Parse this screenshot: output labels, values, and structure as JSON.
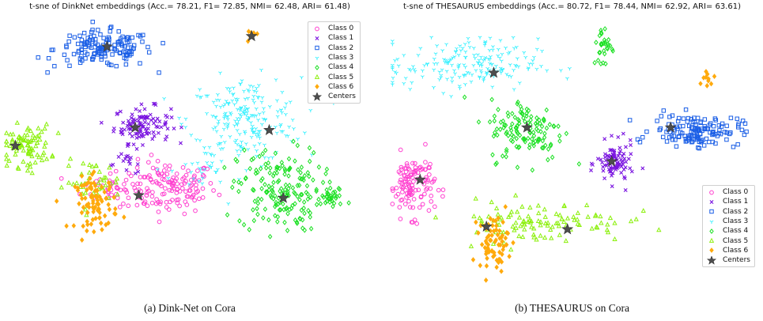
{
  "panels": [
    {
      "title": "t-sne of DinkNet embeddings (Acc.= 78.21, F1= 72.85, NMI= 62.48, ARI= 61.48)",
      "caption": "(a) Dink-Net on Cora"
    },
    {
      "title": "t-sne of THESAURUS embeddings (Acc.= 80.72, F1= 78.44, NMI= 62.92, ARI= 63.61)",
      "caption": "(b) THESAURUS on Cora"
    }
  ],
  "legend_labels": [
    "Class 0",
    "Class 1",
    "Class 2",
    "Class 3",
    "Class 4",
    "Class 5",
    "Class 6",
    "Centers"
  ],
  "colors": {
    "class0": "#ff3ecf",
    "class1": "#7a14e0",
    "class2": "#1a5ee6",
    "class3": "#33f0ff",
    "class4": "#19e021",
    "class5": "#8cf00d",
    "class6": "#ffaa0d",
    "centers": "#4d4d4d"
  },
  "markers": [
    "circle-open",
    "x",
    "square-open",
    "tri-down",
    "diamond-open",
    "triangle-open",
    "diamond-filled",
    "star"
  ],
  "chart_data": [
    {
      "type": "scatter",
      "title": "t-sne of DinkNet embeddings (Acc.= 78.21, F1= 72.85, NMI= 62.48, ARI= 61.48)",
      "xlabel": "",
      "ylabel": "",
      "axes_visible": false,
      "legend_position": "top-right",
      "series": [
        {
          "name": "Class 0",
          "clusters": [
            {
              "x": 0.46,
              "y": 0.36,
              "sx": 0.07,
              "sy": 0.05,
              "n": 150
            },
            {
              "x": 0.3,
              "y": 0.36,
              "sx": 0.04,
              "sy": 0.03,
              "n": 30
            }
          ]
        },
        {
          "name": "Class 1",
          "clusters": [
            {
              "x": 0.39,
              "y": 0.6,
              "sx": 0.04,
              "sy": 0.035,
              "n": 110
            },
            {
              "x": 0.35,
              "y": 0.45,
              "sx": 0.03,
              "sy": 0.02,
              "n": 15
            }
          ]
        },
        {
          "name": "Class 2",
          "clusters": [
            {
              "x": 0.28,
              "y": 0.89,
              "sx": 0.07,
              "sy": 0.035,
              "n": 150
            }
          ]
        },
        {
          "name": "Class 3",
          "clusters": [
            {
              "x": 0.68,
              "y": 0.62,
              "sx": 0.08,
              "sy": 0.08,
              "n": 220
            },
            {
              "x": 0.55,
              "y": 0.42,
              "sx": 0.04,
              "sy": 0.04,
              "n": 25
            }
          ]
        },
        {
          "name": "Class 4",
          "clusters": [
            {
              "x": 0.78,
              "y": 0.35,
              "sx": 0.06,
              "sy": 0.08,
              "n": 180
            },
            {
              "x": 0.93,
              "y": 0.32,
              "sx": 0.02,
              "sy": 0.02,
              "n": 30
            }
          ]
        },
        {
          "name": "Class 5",
          "clusters": [
            {
              "x": 0.06,
              "y": 0.52,
              "sx": 0.035,
              "sy": 0.04,
              "n": 90
            },
            {
              "x": 0.25,
              "y": 0.38,
              "sx": 0.04,
              "sy": 0.04,
              "n": 40
            }
          ]
        },
        {
          "name": "Class 6",
          "clusters": [
            {
              "x": 0.26,
              "y": 0.3,
              "sx": 0.03,
              "sy": 0.05,
              "n": 90
            },
            {
              "x": 0.7,
              "y": 0.95,
              "sx": 0.008,
              "sy": 0.01,
              "n": 8
            }
          ]
        }
      ],
      "centers": [
        {
          "x": 0.29,
          "y": 0.9
        },
        {
          "x": 0.7,
          "y": 0.94
        },
        {
          "x": 0.37,
          "y": 0.59
        },
        {
          "x": 0.75,
          "y": 0.58
        },
        {
          "x": 0.03,
          "y": 0.52
        },
        {
          "x": 0.38,
          "y": 0.33
        },
        {
          "x": 0.79,
          "y": 0.32
        }
      ]
    },
    {
      "type": "scatter",
      "title": "t-sne of THESAURUS embeddings (Acc.= 80.72, F1= 78.44, NMI= 62.92, ARI= 63.61)",
      "xlabel": "",
      "ylabel": "",
      "axes_visible": false,
      "legend_position": "lower-right",
      "series": [
        {
          "name": "Class 0",
          "clusters": [
            {
              "x": 0.06,
              "y": 0.37,
              "sx": 0.03,
              "sy": 0.06,
              "n": 120
            }
          ]
        },
        {
          "name": "Class 1",
          "clusters": [
            {
              "x": 0.61,
              "y": 0.45,
              "sx": 0.025,
              "sy": 0.04,
              "n": 90
            }
          ]
        },
        {
          "name": "Class 2",
          "clusters": [
            {
              "x": 0.83,
              "y": 0.58,
              "sx": 0.06,
              "sy": 0.03,
              "n": 140
            }
          ]
        },
        {
          "name": "Class 3",
          "clusters": [
            {
              "x": 0.2,
              "y": 0.83,
              "sx": 0.1,
              "sy": 0.05,
              "n": 190
            }
          ]
        },
        {
          "name": "Class 4",
          "clusters": [
            {
              "x": 0.37,
              "y": 0.58,
              "sx": 0.05,
              "sy": 0.06,
              "n": 130
            },
            {
              "x": 0.58,
              "y": 0.9,
              "sx": 0.015,
              "sy": 0.04,
              "n": 30
            }
          ]
        },
        {
          "name": "Class 5",
          "clusters": [
            {
              "x": 0.4,
              "y": 0.23,
              "sx": 0.12,
              "sy": 0.04,
              "n": 110
            }
          ]
        },
        {
          "name": "Class 6",
          "clusters": [
            {
              "x": 0.28,
              "y": 0.15,
              "sx": 0.02,
              "sy": 0.05,
              "n": 70
            },
            {
              "x": 0.86,
              "y": 0.78,
              "sx": 0.01,
              "sy": 0.02,
              "n": 10
            }
          ]
        }
      ],
      "centers": [
        {
          "x": 0.28,
          "y": 0.8
        },
        {
          "x": 0.37,
          "y": 0.59
        },
        {
          "x": 0.6,
          "y": 0.46
        },
        {
          "x": 0.76,
          "y": 0.59
        },
        {
          "x": 0.08,
          "y": 0.39
        },
        {
          "x": 0.26,
          "y": 0.21
        },
        {
          "x": 0.48,
          "y": 0.2
        }
      ]
    }
  ]
}
